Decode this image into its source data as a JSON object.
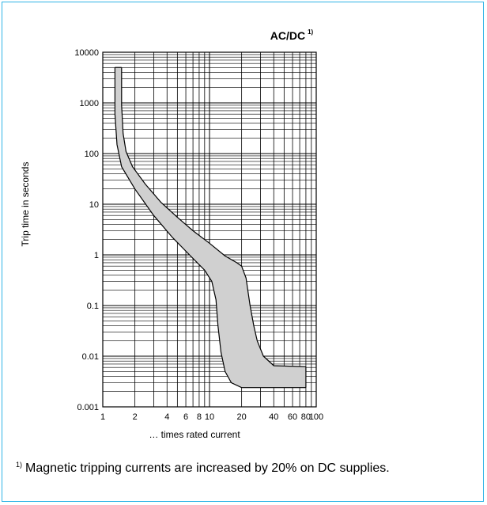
{
  "chart_data": {
    "type": "area",
    "title": "AC/DC",
    "title_footnote_mark": "1)",
    "xlabel": "… times rated current",
    "ylabel": "Trip time in seconds",
    "x_scale": "log",
    "y_scale": "log",
    "xlim": [
      1,
      100
    ],
    "ylim": [
      0.001,
      10000
    ],
    "x_ticks": [
      "1",
      "2",
      "4",
      "6",
      "8",
      "10",
      "20",
      "40",
      "60",
      "80",
      "100"
    ],
    "x_tick_values": [
      1,
      2,
      4,
      6,
      8,
      10,
      20,
      40,
      60,
      80,
      100
    ],
    "y_ticks": [
      "0.001",
      "0.01",
      "0.1",
      "1",
      "10",
      "100",
      "1000",
      "10000"
    ],
    "y_tick_values": [
      0.001,
      0.01,
      0.1,
      1,
      10,
      100,
      1000,
      10000
    ],
    "grid": true,
    "band_color": "#d0d0d0",
    "upper_curve": [
      [
        1.5,
        5000
      ],
      [
        1.5,
        900
      ],
      [
        1.55,
        250
      ],
      [
        1.65,
        110
      ],
      [
        1.9,
        55
      ],
      [
        2.5,
        25
      ],
      [
        3.5,
        11
      ],
      [
        5,
        5.5
      ],
      [
        7,
        3
      ],
      [
        10,
        1.7
      ],
      [
        14,
        0.95
      ],
      [
        18,
        0.7
      ],
      [
        20,
        0.6
      ],
      [
        22,
        0.35
      ],
      [
        24,
        0.1
      ],
      [
        26,
        0.04
      ],
      [
        28,
        0.02
      ],
      [
        32,
        0.01
      ],
      [
        40,
        0.0065
      ],
      [
        80,
        0.0062
      ]
    ],
    "lower_curve": [
      [
        1.3,
        5000
      ],
      [
        1.3,
        600
      ],
      [
        1.36,
        150
      ],
      [
        1.5,
        55
      ],
      [
        2,
        20
      ],
      [
        3,
        6
      ],
      [
        4.5,
        2.2
      ],
      [
        6.5,
        1
      ],
      [
        9,
        0.5
      ],
      [
        10.5,
        0.3
      ],
      [
        11.5,
        0.13
      ],
      [
        12,
        0.04
      ],
      [
        12.8,
        0.012
      ],
      [
        14,
        0.005
      ],
      [
        16,
        0.003
      ],
      [
        20,
        0.0024
      ],
      [
        80,
        0.0024
      ]
    ]
  },
  "footnote": {
    "mark": "1)",
    "text": "Magnetic tripping currents are increased by 20% on DC supplies."
  }
}
